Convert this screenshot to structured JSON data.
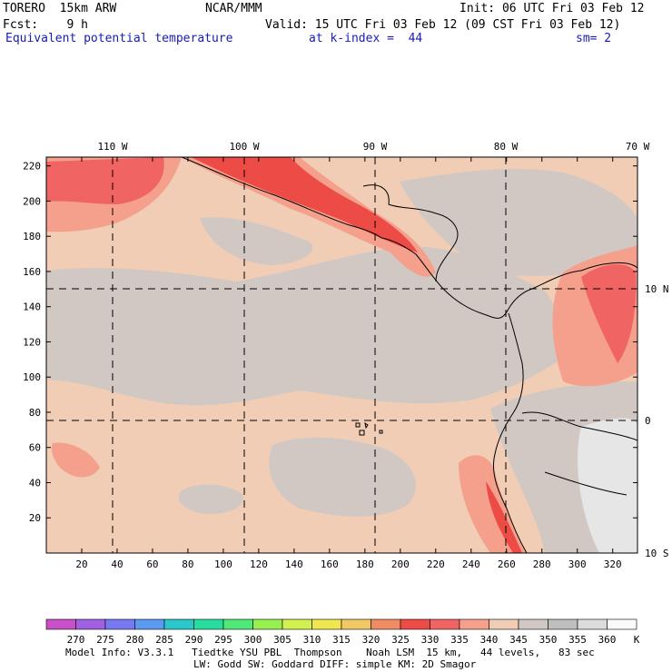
{
  "header": {
    "model": "TORERO  15km ARW",
    "center": "NCAR/MMM",
    "init": "Init: 06 UTC Fri 03 Feb 12",
    "fcst": "Fcst:    9 h",
    "valid": "Valid: 15 UTC Fri 03 Feb 12 (09 CST Fri 03 Feb 12)",
    "field": "Equivalent potential temperature",
    "level": "at k-index =  44",
    "smooth": "sm= 2"
  },
  "footer": {
    "line1": "Model Info: V3.3.1   Tiedtke YSU PBL  Thompson    Noah LSM  15 km,   44 levels,   83 sec",
    "line2": "LW: Godd SW: Goddard DIFF: simple KM: 2D Smagor"
  },
  "chart_data": {
    "type": "heatmap",
    "title": "Equivalent potential temperature",
    "x_ticks": [
      20,
      40,
      60,
      80,
      100,
      120,
      140,
      160,
      180,
      200,
      220,
      240,
      260,
      280,
      300,
      320
    ],
    "y_ticks": [
      20,
      40,
      60,
      80,
      100,
      120,
      140,
      160,
      180,
      200,
      220
    ],
    "xlim": [
      0,
      334
    ],
    "ylim": [
      0,
      225
    ],
    "lon_labels": [
      "110 W",
      "100 W",
      "90 W",
      "80 W",
      "70 W"
    ],
    "lat_labels": [
      "10 N",
      "0",
      "10 S"
    ],
    "colorbar": {
      "unit": "K",
      "labels": [
        270,
        275,
        280,
        285,
        290,
        295,
        300,
        305,
        310,
        315,
        320,
        325,
        330,
        335,
        340,
        345,
        350,
        355,
        360
      ],
      "colors": [
        "#c850c8",
        "#a060e0",
        "#7878f0",
        "#5a9af0",
        "#2ac8c8",
        "#28dca0",
        "#50e878",
        "#96f050",
        "#d2f050",
        "#f0e650",
        "#f0c864",
        "#f08c64",
        "#ec4b46",
        "#f06464",
        "#f5a08c",
        "#f0cdb4",
        "#d2c8c3",
        "#bebebe",
        "#dcdcdc",
        "#fafafa"
      ]
    },
    "field_colors": {
      "background_orange": "#f0cdb4",
      "gray": "#d2c8c3",
      "light_gray": "#e6e6e6",
      "salmon": "#f5a08c",
      "red_light": "#f06464",
      "red": "#ec4b46"
    }
  }
}
